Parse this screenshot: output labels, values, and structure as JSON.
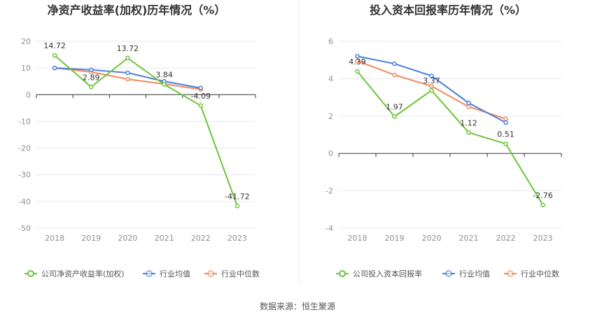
{
  "source": "数据来源：恒生聚源",
  "colors": {
    "company": "#6cc538",
    "avg": "#4a7fdc",
    "median": "#f08a5d",
    "grid": "#e6e9f0",
    "axis": "#333333"
  },
  "chart_data": [
    {
      "type": "line",
      "title": "净资产收益率(加权)历年情况（%）",
      "categories": [
        "2018",
        "2019",
        "2020",
        "2021",
        "2022",
        "2023"
      ],
      "ylim": [
        -50,
        20
      ],
      "yticks": [
        20,
        10,
        0,
        -10,
        -20,
        -30,
        -40,
        -50
      ],
      "grid": true,
      "legend": "bottom",
      "series": [
        {
          "name": "公司净资产收益率(加权)",
          "values": [
            14.72,
            2.89,
            13.72,
            3.84,
            -4.09,
            -41.72
          ],
          "labels": [
            "14.72",
            "2.89",
            "13.72",
            "3.84",
            "-4.09",
            "-41.72"
          ]
        },
        {
          "name": "行业均值",
          "values": [
            10.0,
            9.3,
            8.2,
            5.0,
            2.5,
            null
          ]
        },
        {
          "name": "行业中位数",
          "values": [
            10.0,
            8.5,
            5.8,
            4.0,
            2.0,
            null
          ]
        }
      ]
    },
    {
      "type": "line",
      "title": "投入资本回报率历年情况（%）",
      "categories": [
        "2018",
        "2019",
        "2020",
        "2021",
        "2022",
        "2023"
      ],
      "ylim": [
        -4,
        6
      ],
      "yticks": [
        6,
        4,
        2,
        0,
        -2,
        -4
      ],
      "grid": true,
      "legend": "bottom",
      "series": [
        {
          "name": "公司投入资本回报率",
          "values": [
            4.39,
            1.97,
            3.37,
            1.12,
            0.51,
            -2.76
          ],
          "labels": [
            "4.39",
            "1.97",
            "3.37",
            "1.12",
            "0.51",
            "-2.76"
          ]
        },
        {
          "name": "行业均值",
          "values": [
            5.2,
            4.8,
            4.15,
            2.7,
            1.65,
            null
          ]
        },
        {
          "name": "行业中位数",
          "values": [
            4.95,
            4.2,
            3.6,
            2.5,
            1.85,
            null
          ]
        }
      ]
    }
  ]
}
